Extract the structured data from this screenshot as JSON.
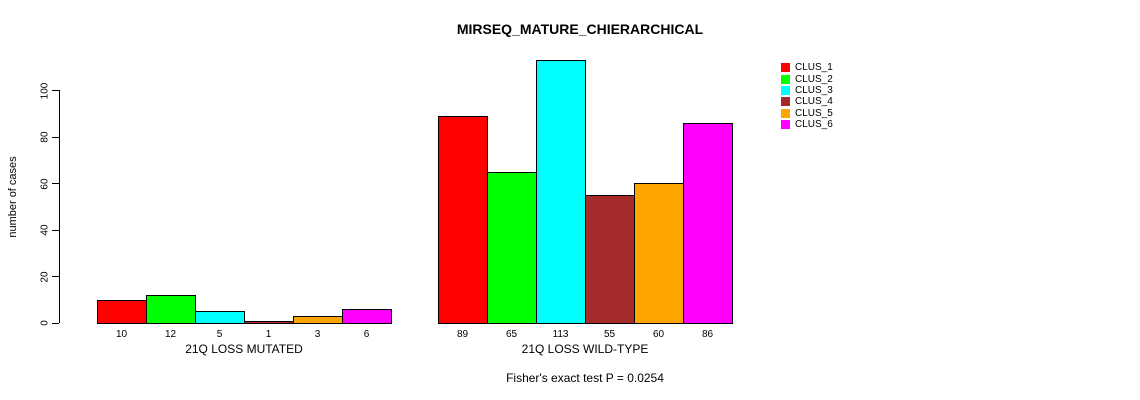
{
  "title": "MIRSEQ_MATURE_CHIERARCHICAL",
  "footnote": "Fisher's exact test P = 0.0254",
  "y_axis": {
    "label": "number of cases",
    "ticks": [
      0,
      20,
      40,
      60,
      80,
      100
    ]
  },
  "legend": {
    "items": [
      {
        "label": "CLUS_1",
        "color": "#ff0000"
      },
      {
        "label": "CLUS_2",
        "color": "#00ff00"
      },
      {
        "label": "CLUS_3",
        "color": "#00ffff"
      },
      {
        "label": "CLUS_4",
        "color": "#a52a2a"
      },
      {
        "label": "CLUS_5",
        "color": "#ffa500"
      },
      {
        "label": "CLUS_6",
        "color": "#ff00ff"
      }
    ]
  },
  "chart_data": {
    "type": "bar",
    "title": "MIRSEQ_MATURE_CHIERARCHICAL",
    "ylabel": "number of cases",
    "ylim": [
      0,
      113
    ],
    "yticks": [
      0,
      20,
      40,
      60,
      80,
      100
    ],
    "grid": false,
    "legend_position": "right",
    "categories": [
      "CLUS_1",
      "CLUS_2",
      "CLUS_3",
      "CLUS_4",
      "CLUS_5",
      "CLUS_6"
    ],
    "colors": [
      "#ff0000",
      "#00ff00",
      "#00ffff",
      "#a52a2a",
      "#ffa500",
      "#ff00ff"
    ],
    "groups": [
      {
        "label": "21Q LOSS MUTATED",
        "values": [
          10,
          12,
          5,
          1,
          3,
          6
        ]
      },
      {
        "label": "21Q LOSS WILD-TYPE",
        "values": [
          89,
          65,
          113,
          55,
          60,
          86
        ]
      }
    ],
    "annotation": "Fisher's exact test P = 0.0254"
  }
}
